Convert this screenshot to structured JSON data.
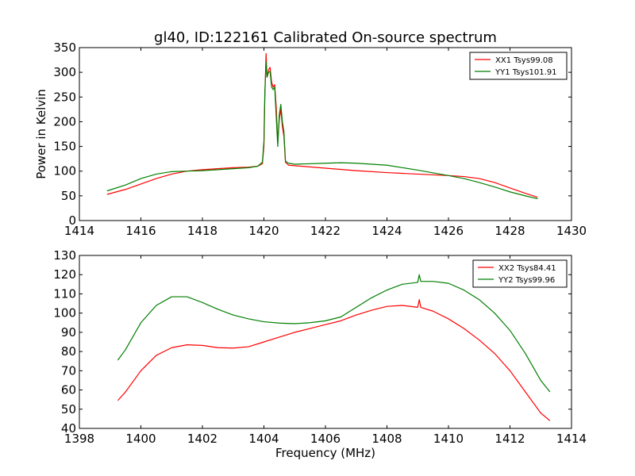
{
  "figure": {
    "title": "gl40, ID:122161 Calibrated On-source spectrum"
  },
  "chart_data": [
    {
      "type": "line",
      "title": "gl40, ID:122161 Calibrated On-source spectrum",
      "xlabel": "",
      "ylabel": "Power in Kelvin",
      "xlim": [
        1414,
        1430
      ],
      "ylim": [
        0,
        350
      ],
      "xticks": [
        1414,
        1416,
        1418,
        1420,
        1422,
        1424,
        1426,
        1428,
        1430
      ],
      "yticks": [
        0,
        50,
        100,
        150,
        200,
        250,
        300,
        350
      ],
      "grid": false,
      "legend_position": "top-right",
      "series": [
        {
          "name": "XX1 Tsys99.08",
          "color": "#ff0000",
          "points": [
            [
              1414.9,
              53
            ],
            [
              1415.5,
              63
            ],
            [
              1416.0,
              74
            ],
            [
              1416.5,
              85
            ],
            [
              1417.0,
              94
            ],
            [
              1417.5,
              100
            ],
            [
              1418.0,
              103
            ],
            [
              1418.5,
              105
            ],
            [
              1419.0,
              107
            ],
            [
              1419.5,
              108
            ],
            [
              1419.8,
              110
            ],
            [
              1419.95,
              115
            ],
            [
              1420.0,
              150
            ],
            [
              1420.03,
              250
            ],
            [
              1420.07,
              338
            ],
            [
              1420.1,
              290
            ],
            [
              1420.15,
              305
            ],
            [
              1420.2,
              310
            ],
            [
              1420.25,
              280
            ],
            [
              1420.3,
              270
            ],
            [
              1420.35,
              275
            ],
            [
              1420.4,
              230
            ],
            [
              1420.45,
              160
            ],
            [
              1420.5,
              205
            ],
            [
              1420.55,
              225
            ],
            [
              1420.6,
              190
            ],
            [
              1420.65,
              170
            ],
            [
              1420.7,
              118
            ],
            [
              1420.8,
              112
            ],
            [
              1421.0,
              111
            ],
            [
              1422.0,
              106
            ],
            [
              1423.0,
              101
            ],
            [
              1424.0,
              97
            ],
            [
              1425.0,
              94
            ],
            [
              1426.0,
              91
            ],
            [
              1426.5,
              89
            ],
            [
              1427.0,
              85
            ],
            [
              1427.5,
              77
            ],
            [
              1428.0,
              66
            ],
            [
              1428.5,
              55
            ],
            [
              1428.9,
              47
            ]
          ]
        },
        {
          "name": "YY1 Tsys101.91",
          "color": "#007f00",
          "points": [
            [
              1414.9,
              60
            ],
            [
              1415.5,
              72
            ],
            [
              1416.0,
              85
            ],
            [
              1416.5,
              94
            ],
            [
              1417.0,
              99
            ],
            [
              1417.5,
              100
            ],
            [
              1418.0,
              101
            ],
            [
              1418.5,
              103
            ],
            [
              1419.0,
              105
            ],
            [
              1419.5,
              107
            ],
            [
              1419.8,
              110
            ],
            [
              1419.95,
              118
            ],
            [
              1420.0,
              160
            ],
            [
              1420.03,
              260
            ],
            [
              1420.07,
              322
            ],
            [
              1420.1,
              290
            ],
            [
              1420.15,
              300
            ],
            [
              1420.2,
              302
            ],
            [
              1420.25,
              270
            ],
            [
              1420.3,
              265
            ],
            [
              1420.35,
              270
            ],
            [
              1420.4,
              210
            ],
            [
              1420.45,
              150
            ],
            [
              1420.5,
              215
            ],
            [
              1420.55,
              235
            ],
            [
              1420.6,
              200
            ],
            [
              1420.65,
              180
            ],
            [
              1420.7,
              120
            ],
            [
              1420.8,
              116
            ],
            [
              1421.0,
              114
            ],
            [
              1422.0,
              116
            ],
            [
              1422.5,
              117
            ],
            [
              1423.0,
              116
            ],
            [
              1424.0,
              112
            ],
            [
              1425.0,
              102
            ],
            [
              1426.0,
              91
            ],
            [
              1426.5,
              85
            ],
            [
              1427.0,
              77
            ],
            [
              1427.5,
              68
            ],
            [
              1428.0,
              58
            ],
            [
              1428.5,
              50
            ],
            [
              1428.9,
              44
            ]
          ]
        }
      ]
    },
    {
      "type": "line",
      "title": "",
      "xlabel": "Frequency (MHz)",
      "ylabel": "",
      "xlim": [
        1398,
        1414
      ],
      "ylim": [
        40,
        130
      ],
      "xticks": [
        1398,
        1400,
        1402,
        1404,
        1406,
        1408,
        1410,
        1412,
        1414
      ],
      "yticks": [
        40,
        50,
        60,
        70,
        80,
        90,
        100,
        110,
        120,
        130
      ],
      "grid": false,
      "legend_position": "top-right",
      "series": [
        {
          "name": "XX2 Tsys84.41",
          "color": "#ff0000",
          "points": [
            [
              1399.25,
              54.5
            ],
            [
              1399.5,
              59
            ],
            [
              1400.0,
              70
            ],
            [
              1400.5,
              78
            ],
            [
              1401.0,
              82
            ],
            [
              1401.5,
              83.5
            ],
            [
              1402.0,
              83.2
            ],
            [
              1402.5,
              82
            ],
            [
              1403.0,
              81.8
            ],
            [
              1403.5,
              82.5
            ],
            [
              1404.0,
              85
            ],
            [
              1404.5,
              87.5
            ],
            [
              1405.0,
              90
            ],
            [
              1405.5,
              92
            ],
            [
              1406.0,
              94
            ],
            [
              1406.5,
              96
            ],
            [
              1407.0,
              99
            ],
            [
              1407.5,
              101.5
            ],
            [
              1408.0,
              103.5
            ],
            [
              1408.5,
              104
            ],
            [
              1409.0,
              103
            ],
            [
              1409.05,
              107
            ],
            [
              1409.1,
              103
            ],
            [
              1409.5,
              101
            ],
            [
              1410.0,
              97
            ],
            [
              1410.5,
              92
            ],
            [
              1411.0,
              86
            ],
            [
              1411.5,
              79
            ],
            [
              1412.0,
              70
            ],
            [
              1412.5,
              59
            ],
            [
              1413.0,
              48
            ],
            [
              1413.3,
              44
            ]
          ]
        },
        {
          "name": "YY2 Tsys99.96",
          "color": "#007f00",
          "points": [
            [
              1399.25,
              75.5
            ],
            [
              1399.5,
              81
            ],
            [
              1400.0,
              95
            ],
            [
              1400.5,
              104
            ],
            [
              1401.0,
              108.5
            ],
            [
              1401.5,
              108.5
            ],
            [
              1402.0,
              105.5
            ],
            [
              1402.5,
              102
            ],
            [
              1403.0,
              99
            ],
            [
              1403.5,
              97
            ],
            [
              1404.0,
              95.5
            ],
            [
              1404.5,
              94.8
            ],
            [
              1405.0,
              94.5
            ],
            [
              1405.5,
              95
            ],
            [
              1406.0,
              96
            ],
            [
              1406.5,
              98
            ],
            [
              1407.0,
              103
            ],
            [
              1407.5,
              108
            ],
            [
              1408.0,
              112
            ],
            [
              1408.5,
              115
            ],
            [
              1409.0,
              116
            ],
            [
              1409.05,
              120
            ],
            [
              1409.1,
              116.5
            ],
            [
              1409.5,
              116.5
            ],
            [
              1410.0,
              115.5
            ],
            [
              1410.5,
              112
            ],
            [
              1411.0,
              107
            ],
            [
              1411.5,
              100
            ],
            [
              1412.0,
              91
            ],
            [
              1412.5,
              79
            ],
            [
              1413.0,
              65
            ],
            [
              1413.3,
              59
            ]
          ]
        }
      ]
    }
  ]
}
